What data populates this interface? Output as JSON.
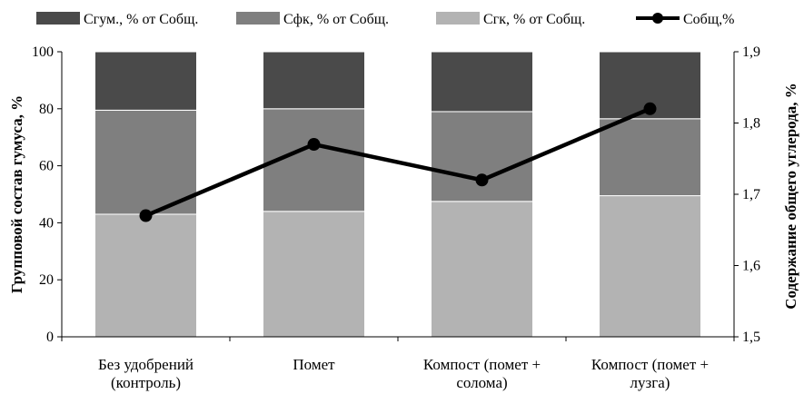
{
  "chart_data": {
    "type": "bar",
    "stacked": true,
    "categories": [
      [
        "Без удобрений",
        "(контроль)"
      ],
      [
        "Помет"
      ],
      [
        "Компост (помет +",
        "солома)"
      ],
      [
        "Компост (помет +",
        "лузга)"
      ]
    ],
    "series": [
      {
        "name": "Сгк, % от Собщ.",
        "color": "#b3b3b3",
        "values": [
          43,
          44,
          47.5,
          49.5
        ]
      },
      {
        "name": "Сфк, % от Собщ.",
        "color": "#7f7f7f",
        "values": [
          36.5,
          36,
          31.5,
          27
        ]
      },
      {
        "name": "Сгум., % от Собщ.",
        "color": "#4a4a4a",
        "values": [
          20.5,
          20,
          21,
          23.5
        ]
      }
    ],
    "line_series": {
      "name": "Собщ,%",
      "color": "#000000",
      "values": [
        1.67,
        1.77,
        1.72,
        1.82
      ]
    },
    "legend_order": [
      "Сгум., % от Собщ.",
      "Сфк, % от Собщ.",
      "Сгк, % от Собщ.",
      "Собщ,%"
    ],
    "ylabel": "Групповой состав гумуса, %",
    "y2label": "Содержание общего углерода, %",
    "ylim": [
      0,
      100
    ],
    "y2lim": [
      1.5,
      1.9
    ],
    "yticks": [
      "0",
      "20",
      "40",
      "60",
      "80",
      "100"
    ],
    "y2ticks": [
      "1,5",
      "1,6",
      "1,7",
      "1,8",
      "1,9"
    ],
    "legend_position": "top",
    "grid": false
  }
}
